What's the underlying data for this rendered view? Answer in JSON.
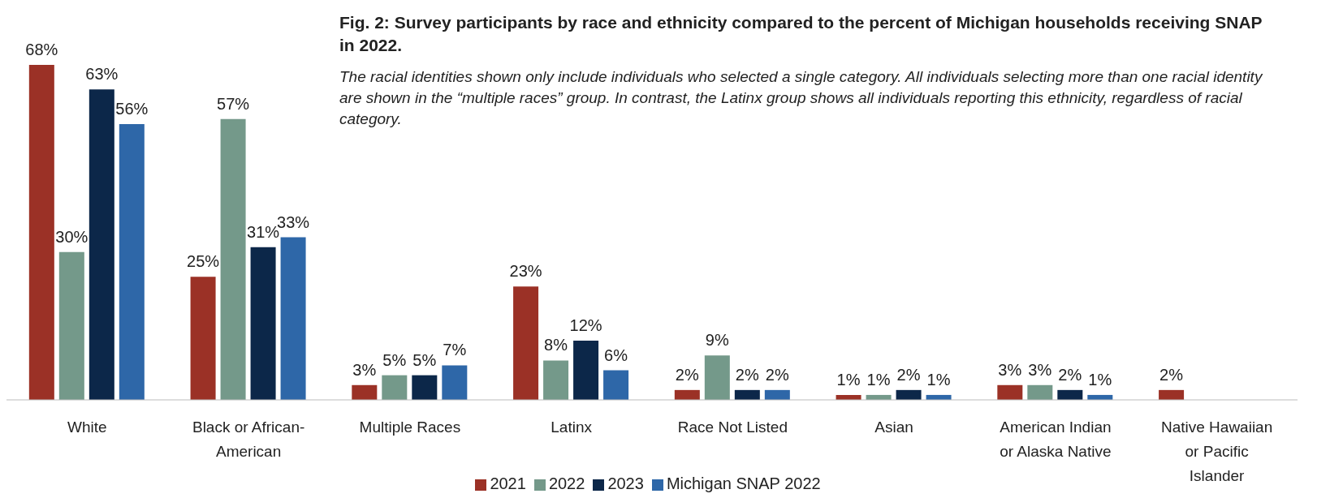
{
  "chart_data": {
    "type": "bar",
    "title": "Fig. 2: Survey participants by race and ethnicity compared to the percent of Michigan households receiving SNAP in 2022.",
    "subtitle": "The racial identities shown only include individuals who selected a single category. All individuals selecting more than one racial identity are shown in the “multiple races” group. In contrast, the Latinx group shows all individuals reporting this ethnicity, regardless of racial category.",
    "categories": [
      "White",
      "Black or African-American",
      "Multiple Races",
      "Latinx",
      "Race Not Listed",
      "Asian",
      "American Indian or Alaska Native",
      "Native Hawaiian or Pacific Islander"
    ],
    "series": [
      {
        "name": "2021",
        "color": "#9b3126",
        "values": [
          68,
          25,
          3,
          23,
          2,
          1,
          3,
          2
        ],
        "value_labels": [
          "68%",
          "25%",
          "3%",
          "23%",
          "2%",
          "1%",
          "3%",
          "2%"
        ]
      },
      {
        "name": "2022",
        "color": "#74998a",
        "values": [
          30,
          57,
          5,
          8,
          9,
          1,
          3,
          null
        ],
        "value_labels": [
          "30%",
          "57%",
          "5%",
          "8%",
          "9%",
          "1%",
          "3%",
          null
        ]
      },
      {
        "name": "2023",
        "color": "#0c2749",
        "values": [
          63,
          31,
          5,
          12,
          2,
          2,
          2,
          null
        ],
        "value_labels": [
          "63%",
          "31%",
          "5%",
          "12%",
          "2%",
          "2%",
          "2%",
          null
        ]
      },
      {
        "name": "Michigan SNAP 2022",
        "color": "#2e67a8",
        "values": [
          56,
          33,
          7,
          6,
          2,
          1,
          1,
          null
        ],
        "value_labels": [
          "56%",
          "33%",
          "7%",
          "6%",
          "2%",
          "1%",
          "1%",
          null
        ]
      }
    ],
    "legend": "bottom",
    "grid": false
  }
}
